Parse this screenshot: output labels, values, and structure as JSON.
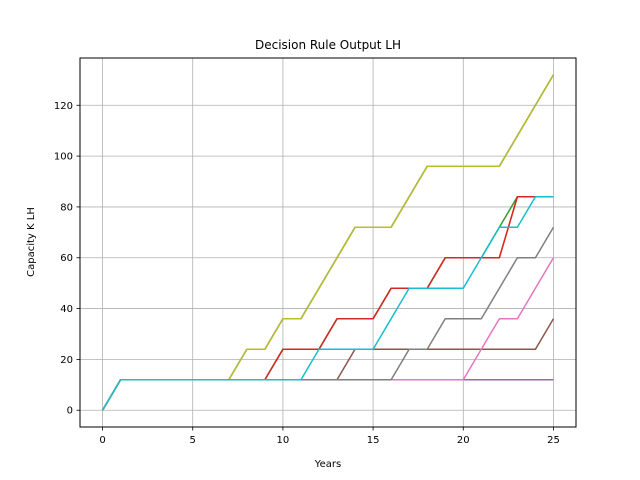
{
  "chart_data": {
    "type": "line",
    "title": "Decision Rule Output LH",
    "xlabel": "Years",
    "ylabel": "Capacity K LH",
    "xlim": [
      -1.25,
      26.25
    ],
    "ylim": [
      -6.6,
      138.6
    ],
    "xticks": [
      0,
      5,
      10,
      15,
      20,
      25
    ],
    "yticks": [
      0,
      20,
      40,
      60,
      80,
      100,
      120
    ],
    "grid": true,
    "series": [
      {
        "color": "#1f77b4",
        "x": [
          0,
          1,
          7,
          8,
          9,
          10,
          11,
          13,
          14,
          15,
          16,
          17,
          18,
          19,
          20,
          21,
          22,
          23,
          24,
          25
        ],
        "y": [
          0,
          12,
          12,
          24,
          24,
          36,
          36,
          60,
          72,
          72,
          72,
          84,
          96,
          96,
          96,
          96,
          96,
          108,
          120,
          132
        ]
      },
      {
        "color": "#ff7f0e",
        "x": [
          0,
          1,
          9,
          10,
          12,
          13,
          15,
          16,
          17,
          18,
          19,
          20,
          22,
          23,
          24,
          25
        ],
        "y": [
          0,
          12,
          12,
          24,
          24,
          36,
          36,
          48,
          48,
          48,
          60,
          60,
          60,
          84,
          84,
          84
        ]
      },
      {
        "color": "#2ca02c",
        "x": [
          0,
          1,
          9,
          10,
          12,
          13,
          15,
          16,
          17,
          18,
          19,
          20,
          21,
          22,
          23,
          24,
          25
        ],
        "y": [
          0,
          12,
          12,
          24,
          24,
          36,
          36,
          48,
          48,
          48,
          60,
          60,
          60,
          72,
          84,
          84,
          84
        ]
      },
      {
        "color": "#d62728",
        "x": [
          0,
          1,
          9,
          10,
          12,
          13,
          15,
          16,
          17,
          18,
          19,
          20,
          22,
          23,
          24,
          25
        ],
        "y": [
          0,
          12,
          12,
          24,
          24,
          36,
          36,
          48,
          48,
          48,
          60,
          60,
          60,
          84,
          84,
          84
        ]
      },
      {
        "color": "#9467bd",
        "x": [
          0,
          1,
          25
        ],
        "y": [
          0,
          12,
          12
        ]
      },
      {
        "color": "#8c564b",
        "x": [
          0,
          1,
          13,
          14,
          24,
          25
        ],
        "y": [
          0,
          12,
          12,
          24,
          24,
          36
        ]
      },
      {
        "color": "#e377c2",
        "x": [
          0,
          1,
          16,
          20,
          22,
          23,
          24,
          25
        ],
        "y": [
          0,
          12,
          12,
          12,
          36,
          36,
          48,
          60
        ]
      },
      {
        "color": "#7f7f7f",
        "x": [
          0,
          1,
          16,
          17,
          18,
          19,
          20,
          21,
          22,
          23,
          24,
          25
        ],
        "y": [
          0,
          12,
          12,
          24,
          24,
          36,
          36,
          36,
          48,
          60,
          60,
          72
        ]
      },
      {
        "color": "#bcbd22",
        "x": [
          0,
          1,
          7,
          8,
          9,
          10,
          11,
          14,
          15,
          16,
          17,
          18,
          19,
          20,
          21,
          22,
          23,
          24,
          25
        ],
        "y": [
          0,
          12,
          12,
          24,
          24,
          36,
          36,
          72,
          72,
          72,
          84,
          96,
          96,
          96,
          96,
          96,
          108,
          120,
          132
        ]
      },
      {
        "color": "#17becf",
        "x": [
          0,
          1,
          11,
          12,
          15,
          16,
          17,
          18,
          19,
          20,
          21,
          22,
          23,
          24,
          25
        ],
        "y": [
          0,
          12,
          12,
          24,
          24,
          36,
          48,
          48,
          48,
          48,
          60,
          72,
          72,
          84,
          84
        ]
      }
    ]
  }
}
